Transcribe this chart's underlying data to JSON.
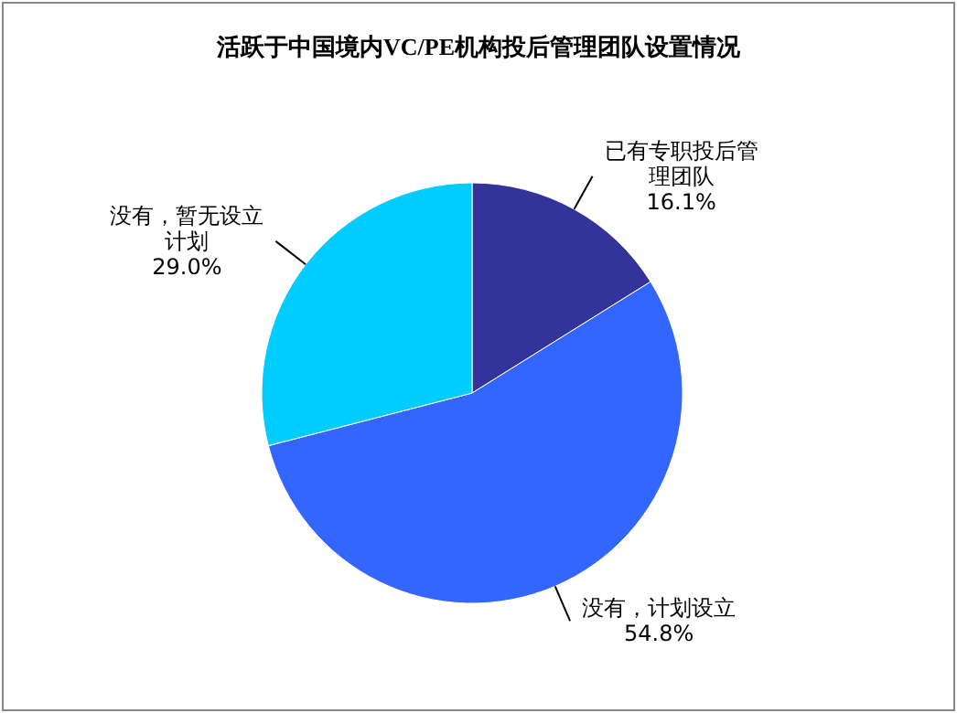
{
  "chart_data": {
    "type": "pie",
    "title": "活跃于中国境内VC/PE机构投后管理团队设置情况",
    "categories": [
      "已有专职投后管理团队",
      "没有，计划设立",
      "没有，暂无设立计划"
    ],
    "values": [
      16.1,
      54.8,
      29.0
    ],
    "value_labels": [
      "16.1%",
      "54.8%",
      "29.0%"
    ],
    "colors": [
      "#333399",
      "#3366ff",
      "#00ccff"
    ],
    "legend": false
  }
}
